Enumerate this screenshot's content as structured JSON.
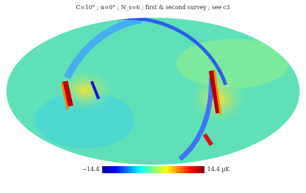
{
  "title": "C=10° ; α=0° ; N_s=6 ; first & second survey ; see c3",
  "colorbar": {
    "min_label": "−14.4",
    "max_label": "14.4 µK"
  }
}
